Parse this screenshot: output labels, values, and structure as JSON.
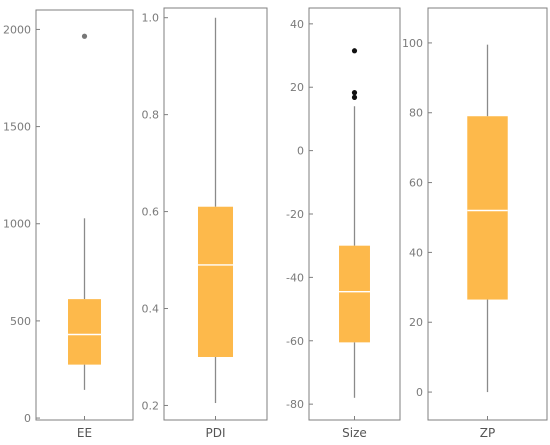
{
  "chart_data": [
    {
      "type": "boxplot",
      "xlabel": "EE",
      "ylim": [
        -10,
        2100
      ],
      "yticks": [
        0,
        500,
        1000,
        1500,
        2000
      ],
      "box": {
        "min": 145,
        "q1": 275,
        "median": 430,
        "q3": 612,
        "max": 1028
      },
      "outliers": [
        1965
      ],
      "outlier_color": "#777777"
    },
    {
      "type": "boxplot",
      "xlabel": "PDI",
      "ylim": [
        0.17,
        1.02
      ],
      "yticks": [
        0.2,
        0.4,
        0.6,
        0.8,
        1.0
      ],
      "ytick_labels": [
        "0.2",
        "0.4",
        "0.6",
        "0.8",
        "1.0"
      ],
      "box": {
        "min": 0.205,
        "q1": 0.3,
        "median": 0.49,
        "q3": 0.61,
        "max": 1.0
      },
      "outliers": [],
      "outlier_color": "#777777"
    },
    {
      "type": "boxplot",
      "xlabel": "Size",
      "ylim": [
        -85,
        45
      ],
      "yticks": [
        -80,
        -60,
        -40,
        -20,
        0,
        20,
        40
      ],
      "box": {
        "min": -78,
        "q1": -60.5,
        "median": -44.5,
        "q3": -30,
        "max": 14
      },
      "outliers": [
        16.8,
        18.3,
        31.5
      ],
      "outlier_color": "#111111"
    },
    {
      "type": "boxplot",
      "xlabel": "ZP",
      "ylim": [
        -8,
        110
      ],
      "yticks": [
        0,
        20,
        40,
        60,
        80,
        100
      ],
      "box": {
        "min": 0,
        "q1": 26.5,
        "median": 52,
        "q3": 79,
        "max": 99.5
      },
      "outliers": [],
      "outlier_color": "#777777"
    }
  ],
  "colors": {
    "box_fill": "#FDB94B",
    "median": "#FFFFFF",
    "whisker": "#8A8A8A",
    "frame": "#7F7F7F"
  }
}
